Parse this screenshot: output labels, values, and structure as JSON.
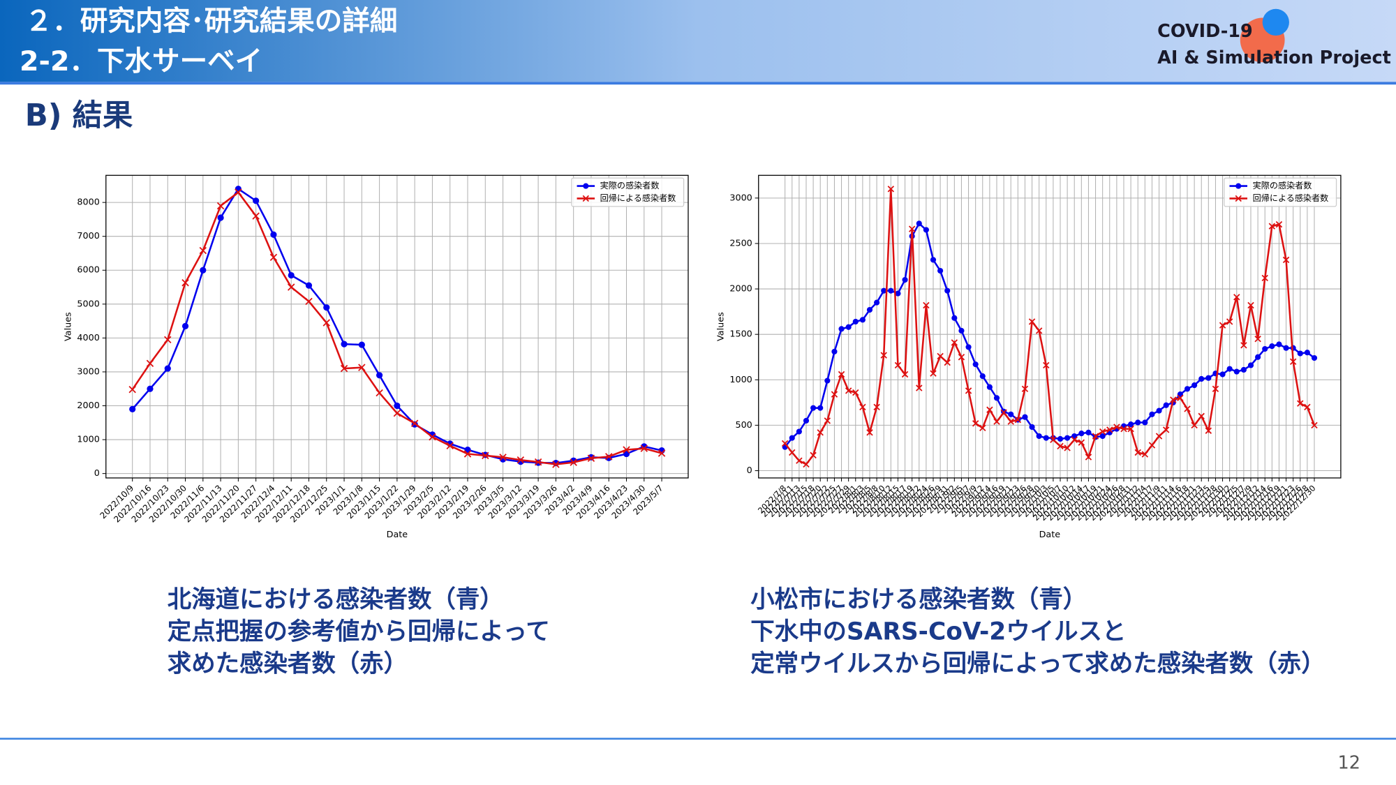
{
  "header": {
    "title": "２．研究内容･研究結果の詳細",
    "subtitle": "2-2．下水サーベイ"
  },
  "logo": {
    "line1": "COVID-19",
    "line2": "AI & Simulation Project"
  },
  "section": "B) 結果",
  "chart_data": [
    {
      "type": "line",
      "xlabel": "Date",
      "ylabel": "Values",
      "categories": [
        "2022/10/9",
        "2022/10/16",
        "2022/10/23",
        "2022/10/30",
        "2022/11/6",
        "2022/11/13",
        "2022/11/20",
        "2022/11/27",
        "2022/12/4",
        "2022/12/11",
        "2022/12/18",
        "2022/12/25",
        "2023/1/1",
        "2023/1/8",
        "2023/1/15",
        "2023/1/22",
        "2023/1/29",
        "2023/2/5",
        "2023/2/12",
        "2023/2/19",
        "2023/2/26",
        "2023/3/5",
        "2023/3/12",
        "2023/3/19",
        "2023/3/26",
        "2023/4/2",
        "2023/4/9",
        "2023/4/16",
        "2023/4/23",
        "2023/4/30",
        "2023/5/7"
      ],
      "series": [
        {
          "name": "実際の感染者数",
          "color": "#0000ee",
          "marker": "o",
          "values": [
            1900,
            2500,
            3100,
            4350,
            6000,
            7550,
            8400,
            8050,
            7050,
            5850,
            5550,
            4900,
            3820,
            3800,
            2900,
            2000,
            1450,
            1150,
            880,
            700,
            550,
            420,
            350,
            320,
            310,
            380,
            480,
            460,
            580,
            800,
            680
          ]
        },
        {
          "name": "回帰による感染者数",
          "color": "#dd1111",
          "marker": "x",
          "values": [
            2480,
            3250,
            3950,
            5630,
            6580,
            7900,
            8300,
            7600,
            6380,
            5500,
            5080,
            4450,
            3100,
            3130,
            2380,
            1780,
            1480,
            1080,
            820,
            580,
            530,
            480,
            400,
            340,
            270,
            330,
            450,
            500,
            700,
            740,
            600
          ]
        }
      ],
      "ylim": [
        -130,
        8800
      ],
      "yticks": [
        0,
        1000,
        2000,
        3000,
        4000,
        5000,
        6000,
        7000,
        8000
      ],
      "grid": true,
      "legend": "upper right"
    },
    {
      "type": "line",
      "xlabel": "Date",
      "ylabel": "Values",
      "categories": [
        "2022/7/8",
        "2022/7/11",
        "2022/7/13",
        "2022/7/15",
        "2022/7/18",
        "2022/7/20",
        "2022/7/22",
        "2022/7/25",
        "2022/7/27",
        "2022/7/29",
        "2022/8/1",
        "2022/8/3",
        "2022/8/5",
        "2022/8/8",
        "2022/8/10",
        "2022/8/12",
        "2022/8/15",
        "2022/8/17",
        "2022/8/19",
        "2022/8/22",
        "2022/8/24",
        "2022/8/26",
        "2022/8/29",
        "2022/8/31",
        "2022/9/2",
        "2022/9/5",
        "2022/9/7",
        "2022/9/9",
        "2022/9/12",
        "2022/9/14",
        "2022/9/16",
        "2022/9/19",
        "2022/9/21",
        "2022/9/23",
        "2022/9/26",
        "2022/9/28",
        "2022/9/30",
        "2022/10/3",
        "2022/10/5",
        "2022/10/7",
        "2022/10/10",
        "2022/10/12",
        "2022/10/14",
        "2022/10/17",
        "2022/10/19",
        "2022/10/21",
        "2022/10/24",
        "2022/10/26",
        "2022/10/28",
        "2022/10/31",
        "2022/11/2",
        "2022/11/4",
        "2022/11/7",
        "2022/11/9",
        "2022/11/11",
        "2022/11/14",
        "2022/11/16",
        "2022/11/18",
        "2022/11/21",
        "2022/11/23",
        "2022/11/25",
        "2022/11/28",
        "2022/11/30",
        "2022/12/2",
        "2022/12/5",
        "2022/12/7",
        "2022/12/9",
        "2022/12/12",
        "2022/12/14",
        "2022/12/16",
        "2022/12/19",
        "2022/12/21",
        "2022/12/23",
        "2022/12/26",
        "2022/12/28",
        "2022/12/30"
      ],
      "series": [
        {
          "name": "実際の感染者数",
          "color": "#0000ee",
          "marker": "o",
          "values": [
            260,
            360,
            430,
            550,
            690,
            690,
            990,
            1310,
            1560,
            1580,
            1640,
            1660,
            1770,
            1850,
            1980,
            1980,
            1950,
            2100,
            2580,
            2720,
            2650,
            2320,
            2200,
            1980,
            1680,
            1540,
            1360,
            1170,
            1040,
            920,
            800,
            650,
            620,
            560,
            590,
            480,
            380,
            360,
            360,
            350,
            360,
            380,
            410,
            420,
            370,
            380,
            420,
            460,
            490,
            510,
            530,
            530,
            620,
            660,
            720,
            750,
            840,
            900,
            940,
            1010,
            1020,
            1070,
            1060,
            1120,
            1090,
            1110,
            1160,
            1250,
            1340,
            1370,
            1390,
            1350,
            1350,
            1290,
            1300,
            1240
          ]
        },
        {
          "name": "回帰による感染者数",
          "color": "#dd1111",
          "marker": "x",
          "values": [
            300,
            200,
            110,
            70,
            170,
            420,
            550,
            840,
            1060,
            880,
            860,
            700,
            420,
            700,
            1270,
            3100,
            1160,
            1060,
            2660,
            910,
            1820,
            1070,
            1260,
            1190,
            1410,
            1250,
            880,
            520,
            470,
            670,
            540,
            640,
            540,
            560,
            900,
            1640,
            1540,
            1160,
            340,
            270,
            250,
            340,
            310,
            150,
            380,
            430,
            450,
            480,
            460,
            460,
            200,
            180,
            280,
            380,
            450,
            780,
            800,
            680,
            500,
            600,
            440,
            900,
            1600,
            1640,
            1910,
            1380,
            1820,
            1450,
            2120,
            2690,
            2710,
            2320,
            1200,
            740,
            700,
            500
          ]
        }
      ],
      "ylim": [
        -80,
        3250
      ],
      "yticks": [
        0,
        500,
        1000,
        1500,
        2000,
        2500,
        3000
      ],
      "grid": true,
      "legend": "upper right"
    }
  ],
  "captions": [
    [
      "北海道における感染者数（青）",
      "定点把握の参考値から回帰によって",
      "求めた感染者数（赤）"
    ],
    [
      "小松市における感染者数（青）",
      "下水中のSARS-CoV-2ウイルスと",
      "定常ウイルスから回帰によって求めた感染者数（赤）"
    ]
  ],
  "page_number": "12"
}
